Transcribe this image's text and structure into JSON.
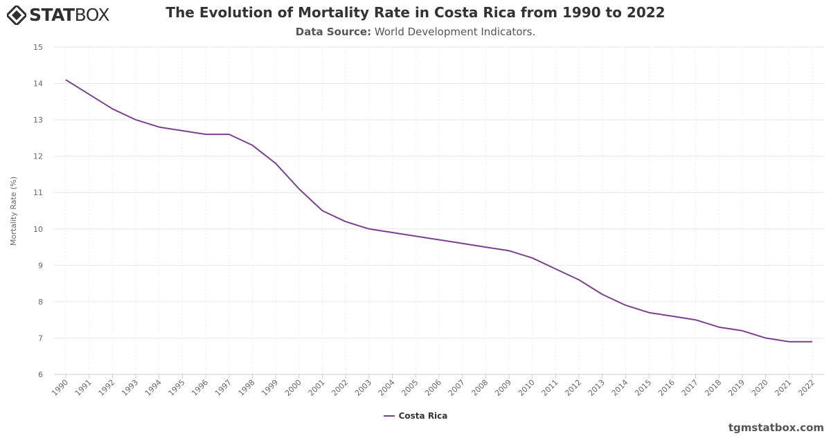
{
  "brand": {
    "logo_text_bold": "STAT",
    "logo_text_light": "BOX",
    "footer_site": "tgmstatbox.com"
  },
  "header": {
    "title": "The Evolution of Mortality Rate in Costa Rica from 1990 to 2022",
    "source_label": "Data Source:",
    "source_value": "World Development Indicators."
  },
  "chart_data": {
    "type": "line",
    "title": "The Evolution of Mortality Rate in Costa Rica from 1990 to 2022",
    "xlabel": "",
    "ylabel": "Mortality Rate (%)",
    "ylim": [
      6,
      15
    ],
    "yticks": [
      6,
      7,
      8,
      9,
      10,
      11,
      12,
      13,
      14,
      15
    ],
    "grid": true,
    "legend_position": "bottom-center",
    "x": [
      "1990",
      "1991",
      "1992",
      "1993",
      "1994",
      "1995",
      "1996",
      "1997",
      "1998",
      "1999",
      "2000",
      "2001",
      "2002",
      "2003",
      "2004",
      "2005",
      "2006",
      "2007",
      "2008",
      "2009",
      "2010",
      "2011",
      "2012",
      "2013",
      "2014",
      "2015",
      "2016",
      "2017",
      "2018",
      "2019",
      "2020",
      "2021",
      "2022"
    ],
    "series": [
      {
        "name": "Costa Rica",
        "color": "#7b3f8f",
        "values": [
          14.1,
          13.7,
          13.3,
          13.0,
          12.8,
          12.7,
          12.6,
          12.6,
          12.3,
          11.8,
          11.1,
          10.5,
          10.2,
          10.0,
          9.9,
          9.8,
          9.7,
          9.6,
          9.5,
          9.4,
          9.2,
          8.9,
          8.6,
          8.2,
          7.9,
          7.7,
          7.6,
          7.5,
          7.3,
          7.2,
          7.0,
          6.9,
          6.9
        ]
      }
    ]
  }
}
